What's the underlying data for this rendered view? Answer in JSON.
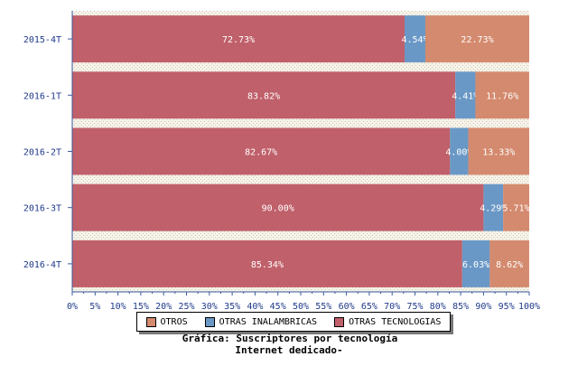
{
  "chart_data": {
    "type": "bar",
    "orientation": "horizontal",
    "stacked": true,
    "title": "Gráfica: Suscriptores por tecnología",
    "subtitle": "Internet dedicado-",
    "categories": [
      "2015-4T",
      "2016-1T",
      "2016-2T",
      "2016-3T",
      "2016-4T"
    ],
    "series": [
      {
        "name": "OTRAS TECNOLOGIAS",
        "color": "#c0606a",
        "values": [
          72.73,
          83.82,
          82.67,
          90.0,
          85.34
        ],
        "labels": [
          "72.73%",
          "83.82%",
          "82.67%",
          "90.00%",
          "85.34%"
        ]
      },
      {
        "name": "OTRAS INALAMBRICAS",
        "color": "#6a98c6",
        "values": [
          4.54,
          4.41,
          4.0,
          4.29,
          6.03
        ],
        "labels": [
          "4.54%",
          "4.41%",
          "4.00%",
          "4.29%",
          "6.03%"
        ]
      },
      {
        "name": "OTROS",
        "color": "#d48a6e",
        "values": [
          22.73,
          11.76,
          13.33,
          5.71,
          8.62
        ],
        "labels": [
          "22.73%",
          "11.76%",
          "13.33%",
          "5.71%",
          "8.62%"
        ]
      }
    ],
    "xlim": [
      0,
      100
    ],
    "xticks": [
      "0%",
      "5%",
      "10%",
      "15%",
      "20%",
      "25%",
      "30%",
      "35%",
      "40%",
      "45%",
      "50%",
      "55%",
      "60%",
      "65%",
      "70%",
      "75%",
      "80%",
      "85%",
      "90%",
      "95%",
      "100%"
    ],
    "legend_order": [
      "OTROS",
      "OTRAS INALAMBRICAS",
      "OTRAS TECNOLOGIAS"
    ],
    "legend_position": "bottom",
    "grid": true
  }
}
